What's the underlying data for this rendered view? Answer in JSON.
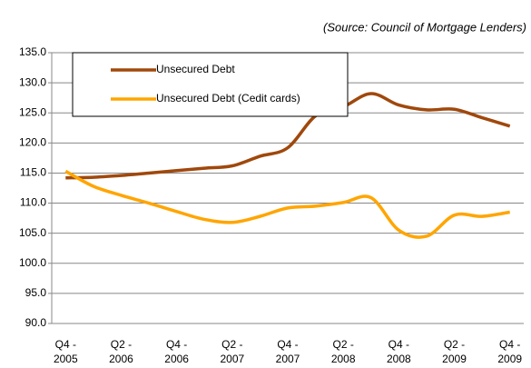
{
  "chart_data": {
    "type": "line",
    "subtitle": "(Source: Council of Mortgage Lenders)",
    "categories": [
      "Q4 - 2005",
      null,
      "Q2 - 2006",
      null,
      "Q4 - 2006",
      null,
      "Q2 - 2007",
      null,
      "Q4 - 2007",
      null,
      "Q2 - 2008",
      null,
      "Q4 - 2008",
      null,
      "Q2 - 2009",
      null,
      "Q4 - 2009"
    ],
    "series": [
      {
        "name": "Unsecured Debt",
        "color": "#a0480c",
        "values": [
          114.2,
          114.3,
          114.6,
          115.0,
          115.4,
          115.8,
          116.2,
          117.8,
          119.2,
          124.5,
          126.0,
          128.2,
          126.3,
          125.5,
          125.6,
          124.2,
          122.8
        ]
      },
      {
        "name": "Unsecured Debt (Cedit cards)",
        "color": "#ffa500",
        "values": [
          115.3,
          112.8,
          111.3,
          110.0,
          108.6,
          107.3,
          106.8,
          107.8,
          109.2,
          109.5,
          110.1,
          110.9,
          105.5,
          104.5,
          108.0,
          107.8,
          108.5
        ]
      }
    ],
    "ylim": [
      90,
      135
    ],
    "yticks": [
      {
        "value": 90,
        "label": "90.0"
      },
      {
        "value": 95,
        "label": "95.0"
      },
      {
        "value": 100,
        "label": "100.0"
      },
      {
        "value": 105,
        "label": "105.0"
      },
      {
        "value": 110,
        "label": "110.0"
      },
      {
        "value": 115,
        "label": "115.0"
      },
      {
        "value": 120,
        "label": "120.0"
      },
      {
        "value": 125,
        "label": "125.0"
      },
      {
        "value": 130,
        "label": "130.0"
      },
      {
        "value": 135,
        "label": "135.0"
      }
    ],
    "grid": true,
    "legend": "top-left"
  }
}
